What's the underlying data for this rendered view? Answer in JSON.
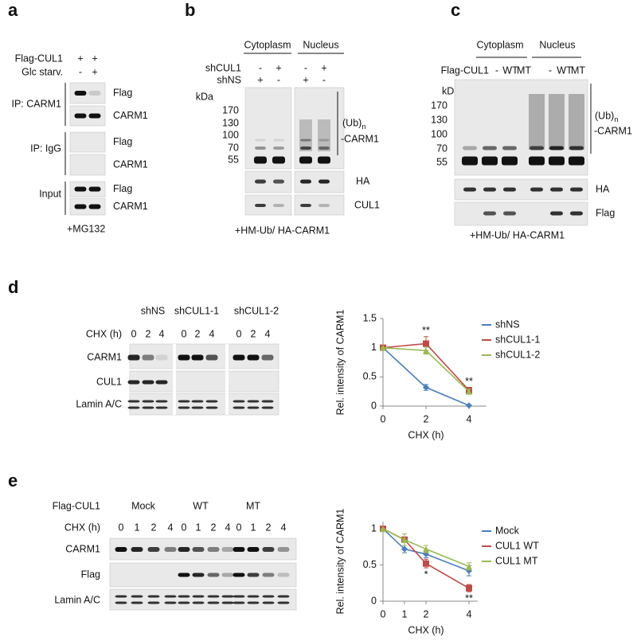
{
  "panel_a": {
    "label": "a",
    "rows": [
      {
        "name": "Flag-CUL1",
        "lanes": [
          "+",
          "+"
        ]
      },
      {
        "name": "Glc starv.",
        "lanes": [
          "-",
          "+"
        ]
      }
    ],
    "groups": [
      "IP: CARM1",
      "IP: IgG",
      "Input"
    ],
    "bands": [
      "Flag",
      "CARM1",
      "Flag",
      "CARM1",
      "Flag",
      "CARM1"
    ],
    "footer": "+MG132"
  },
  "panel_b": {
    "label": "b",
    "compartments": [
      "Cytoplasm",
      "Nucleus"
    ],
    "rows": [
      {
        "name": "shCUL1",
        "lanes": [
          "-",
          "+",
          "-",
          "+"
        ]
      },
      {
        "name": "shNS",
        "lanes": [
          "+",
          "-",
          "+",
          "-"
        ]
      }
    ],
    "unit": "kDa",
    "markers": [
      "170",
      "130",
      "100",
      "70",
      "55"
    ],
    "ub": "(Ub)",
    "ub_sub": "n",
    "ub_target": "-CARM1",
    "bands": [
      "HA",
      "CUL1"
    ],
    "footer": "+HM-Ub/ HA-CARM1"
  },
  "panel_c": {
    "label": "c",
    "compartments": [
      "Cytoplasm",
      "Nucleus"
    ],
    "rows": [
      {
        "name": "Flag-CUL1",
        "lanes": [
          "-",
          "WT",
          "MT",
          "-",
          "WT",
          "MT"
        ]
      }
    ],
    "unit": "kDa",
    "markers": [
      "170",
      "130",
      "100",
      "70",
      "55"
    ],
    "ub": "(Ub)",
    "ub_sub": "n",
    "ub_target": "-CARM1",
    "bands": [
      "HA",
      "Flag"
    ],
    "footer": "+HM-Ub/ HA-CARM1"
  },
  "panel_d": {
    "label": "d",
    "groups": [
      "shNS",
      "shCUL1-1",
      "shCUL1-2"
    ],
    "time_label": "CHX (h)",
    "times": [
      0,
      2,
      4,
      0,
      2,
      4,
      0,
      2,
      4
    ],
    "bands": [
      "CARM1",
      "CUL1",
      "Lamin A/C"
    ]
  },
  "panel_e": {
    "label": "e",
    "treatment": "Flag-CUL1",
    "groups": [
      "Mock",
      "WT",
      "MT"
    ],
    "time_label": "CHX (h)",
    "times": [
      0,
      1,
      2,
      4,
      0,
      1,
      2,
      4,
      0,
      1,
      2,
      4
    ],
    "bands": [
      "CARM1",
      "Flag",
      "Lamin A/C"
    ]
  },
  "chart_data": [
    {
      "type": "line",
      "x_label": "CHX (h)",
      "y_label": "Rel. intensity of CARM1",
      "x": [
        0,
        2,
        4
      ],
      "xlim": [
        0,
        4.8
      ],
      "xticks": [
        0,
        2,
        4
      ],
      "ylim": [
        0,
        1.5
      ],
      "yticks": [
        0,
        0.5,
        1,
        1.5
      ],
      "legend": "right",
      "series": [
        {
          "name": "shNS",
          "color": "#4a7ebb",
          "values": [
            1,
            0.32,
            0.01
          ],
          "errors": [
            0,
            0.05,
            0.01
          ]
        },
        {
          "name": "shCUL1-1",
          "color": "#be4b48",
          "values": [
            1,
            1.07,
            0.27
          ],
          "errors": [
            0,
            0.12,
            0.05
          ]
        },
        {
          "name": "shCUL1-2",
          "color": "#98b954",
          "values": [
            1,
            0.95,
            0.25
          ],
          "errors": [
            0,
            0.06,
            0.04
          ]
        }
      ],
      "annotations": [
        {
          "x": 2,
          "text": "**"
        },
        {
          "x": 4,
          "text": "**"
        }
      ]
    },
    {
      "type": "line",
      "x_label": "CHX (h)",
      "y_label": "Rel. intensity of CARM1",
      "x": [
        0,
        1,
        2,
        4
      ],
      "xlim": [
        0,
        4.4
      ],
      "xticks": [
        0,
        1,
        2,
        4
      ],
      "ylim": [
        0,
        1.1
      ],
      "yticks": [
        0,
        0.5,
        1
      ],
      "legend": "right",
      "series": [
        {
          "name": "Mock",
          "color": "#4a7ebb",
          "values": [
            1,
            0.72,
            0.65,
            0.42
          ],
          "errors": [
            0,
            0.05,
            0.05,
            0.07
          ]
        },
        {
          "name": "CUL1 WT",
          "color": "#be4b48",
          "values": [
            1,
            0.85,
            0.52,
            0.18
          ],
          "errors": [
            0,
            0.08,
            0.06,
            0.05
          ]
        },
        {
          "name": "CUL1 MT",
          "color": "#98b954",
          "values": [
            1,
            0.85,
            0.72,
            0.48
          ],
          "errors": [
            0,
            0.08,
            0.05,
            0.05
          ]
        }
      ],
      "annotations": [
        {
          "x": 2,
          "text": "*"
        },
        {
          "x": 4,
          "text": "**"
        }
      ]
    }
  ]
}
